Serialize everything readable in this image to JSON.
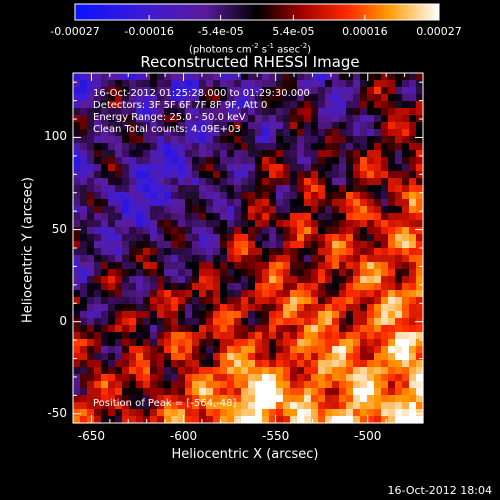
{
  "chart_data": {
    "type": "heatmap",
    "title": "Reconstructed RHESSI Image",
    "xlabel": "Heliocentric X (arcsec)",
    "ylabel": "Heliocentric Y (arcsec)",
    "xlim": [
      -660,
      -470
    ],
    "ylim": [
      -55,
      135
    ],
    "xticks": [
      {
        "value": -650,
        "label": "-650"
      },
      {
        "value": -600,
        "label": "-600"
      },
      {
        "value": -550,
        "label": "-550"
      },
      {
        "value": -500,
        "label": "-500"
      }
    ],
    "yticks": [
      {
        "value": -50,
        "label": "-50"
      },
      {
        "value": 0,
        "label": "0"
      },
      {
        "value": 50,
        "label": "50"
      },
      {
        "value": 100,
        "label": "100"
      }
    ],
    "colorbar": {
      "min": -0.00027,
      "max": 0.00027,
      "ticks": [
        {
          "value": -0.00027,
          "label": "-0.00027"
        },
        {
          "value": -0.00016,
          "label": "-0.00016"
        },
        {
          "value": -5.4e-05,
          "label": "-5.4e-05"
        },
        {
          "value": 5.4e-05,
          "label": "5.4e-05"
        },
        {
          "value": 0.00016,
          "label": "0.00016"
        },
        {
          "value": 0.00027,
          "label": "0.00027"
        }
      ],
      "units_label": {
        "prefix": "(photons cm",
        "exp1": "-2",
        "mid1": " s",
        "exp2": "-1",
        "mid2": " asec",
        "exp3": "-2",
        "suffix": ")"
      }
    },
    "peak": {
      "x": -564,
      "y": -48
    }
  },
  "annotations": {
    "time_range": "16-Oct-2012 01:25:28.000 to 01:29:30.000",
    "detectors": "Detectors: 3F 5F 6F 7F 8F 9F, Att 0",
    "energy_range": "Energy Range: 25.0 - 50.0 keV",
    "method_counts": "Clean     Total counts: 4.09E+03",
    "peak_position": "Position of Peak = [-564,-48]"
  },
  "footer": {
    "timestamp": "16-Oct-2012 18:04"
  }
}
